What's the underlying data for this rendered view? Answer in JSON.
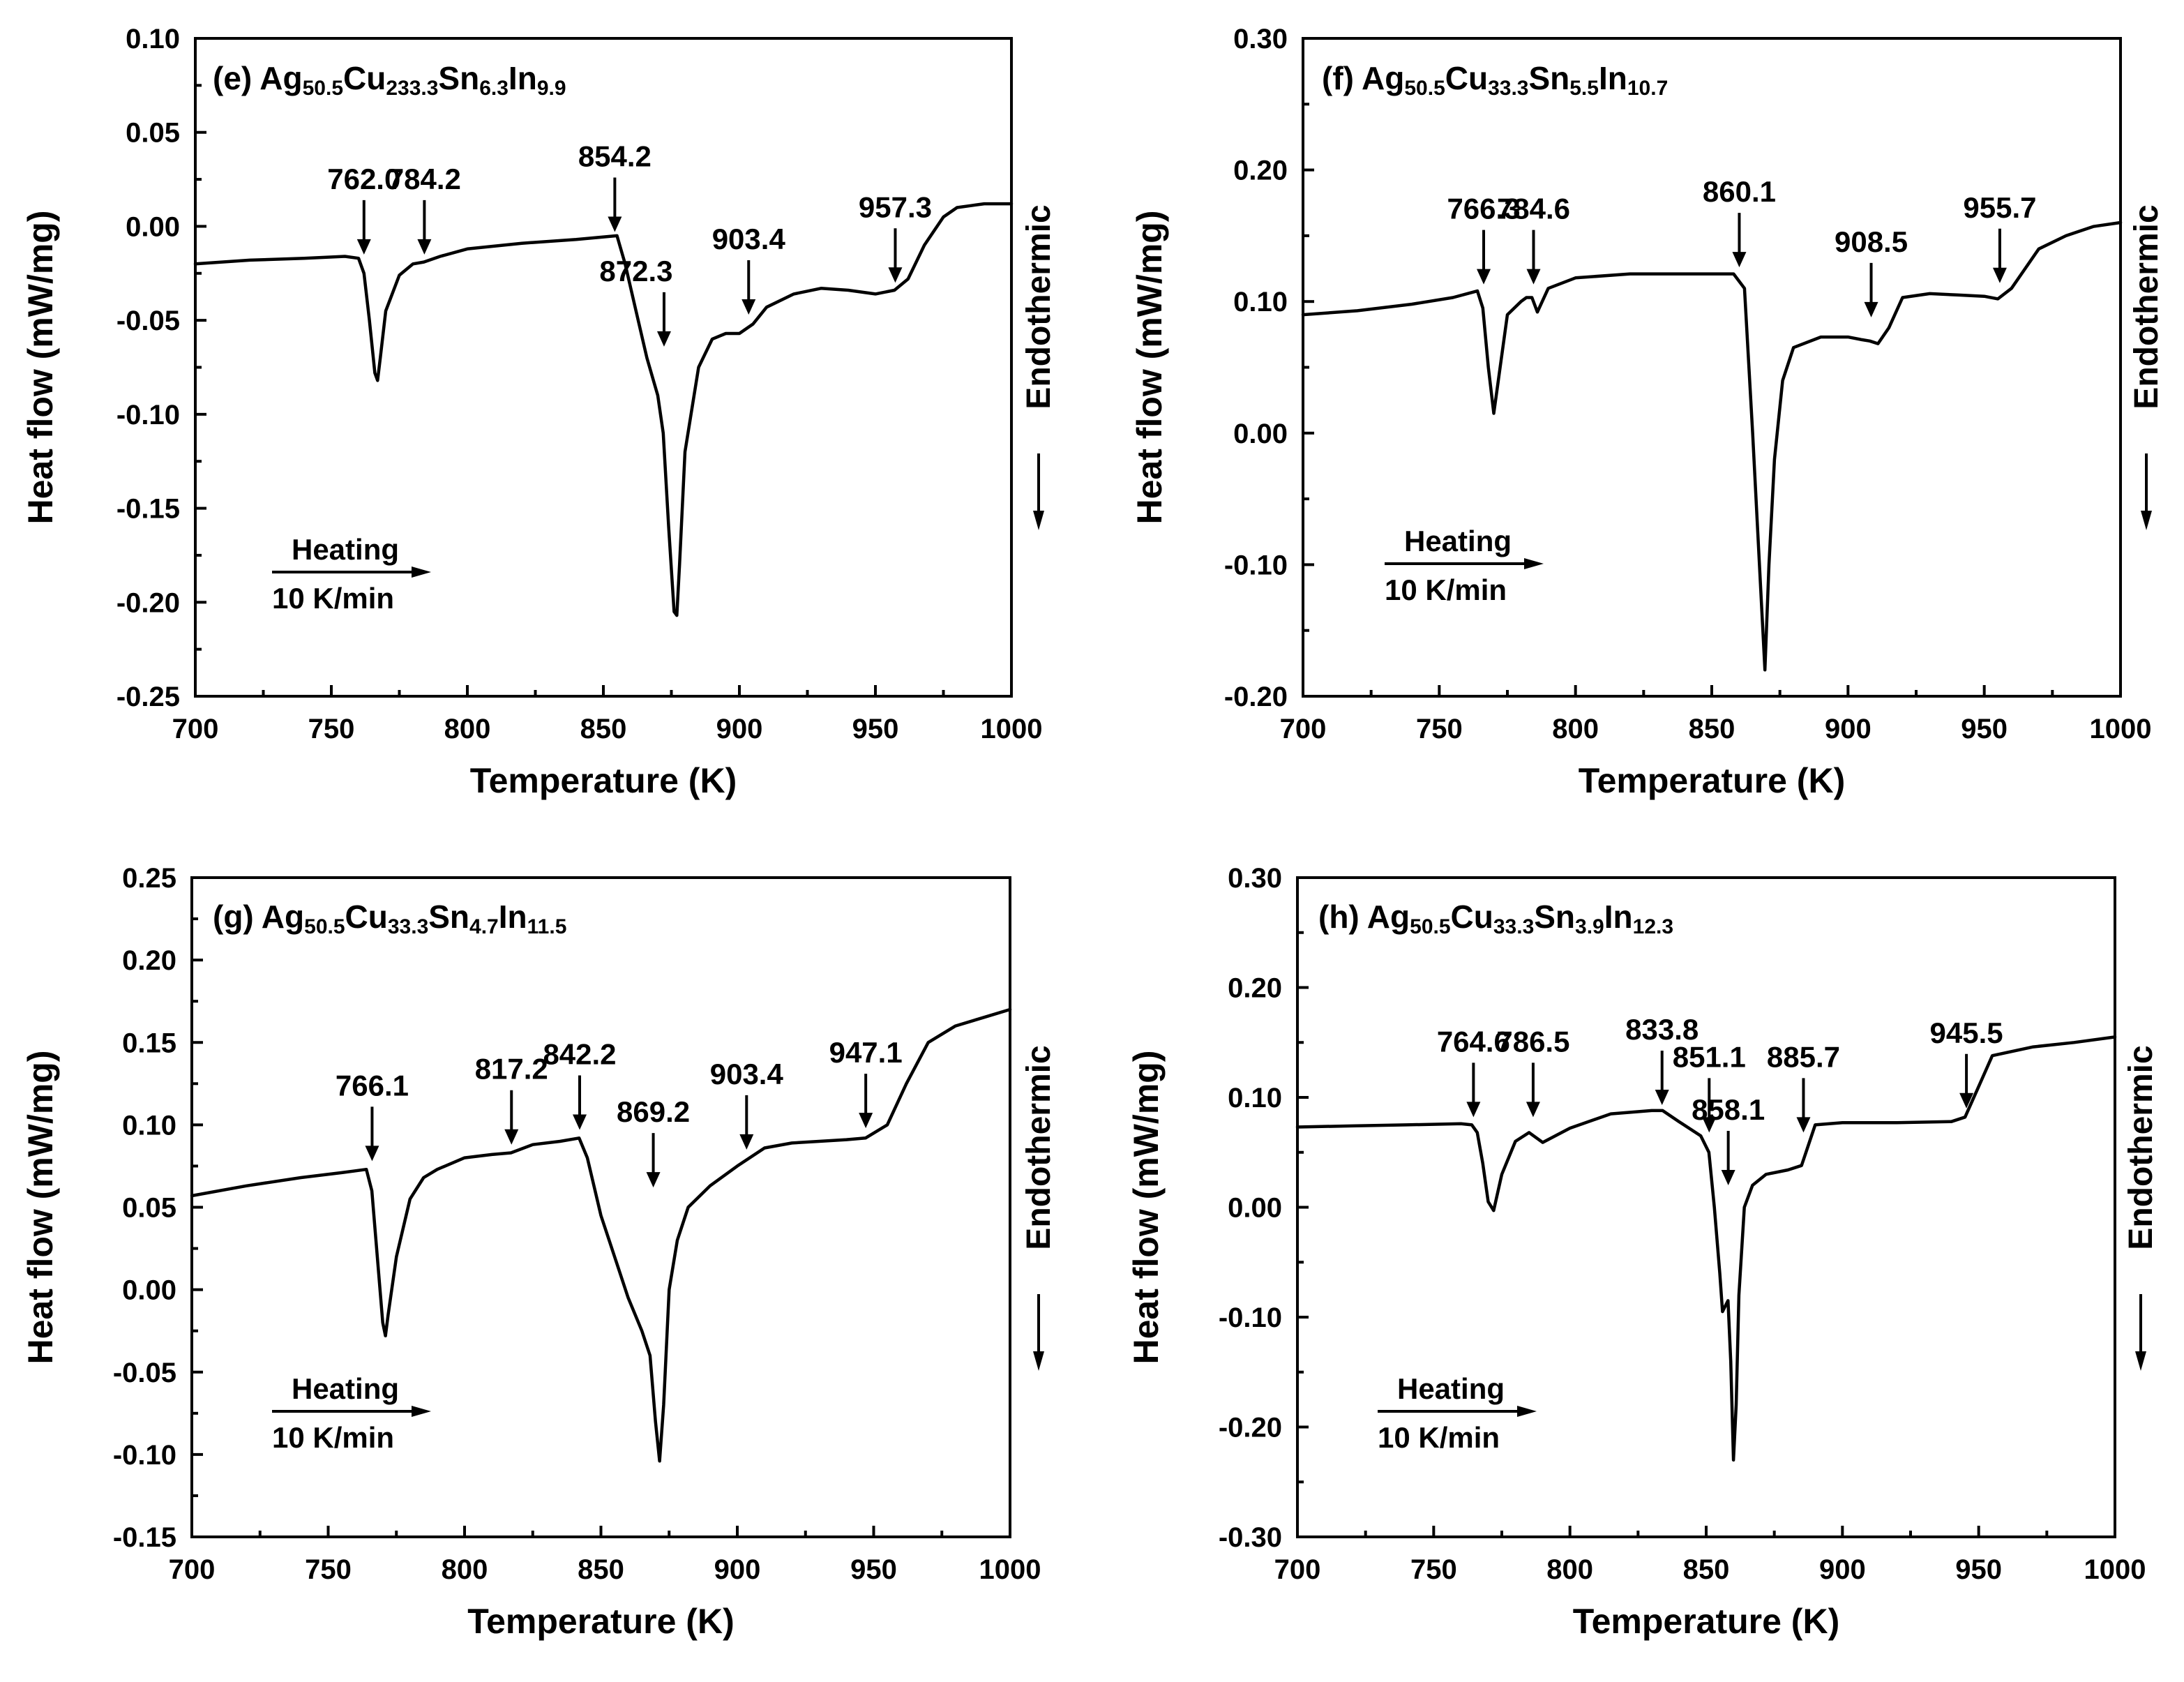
{
  "chart_data": [
    {
      "id": "e",
      "type": "line",
      "title": {
        "parts": [
          {
            "t": "(e) Ag",
            "sub": false
          },
          {
            "t": "50.5",
            "sub": true
          },
          {
            "t": "Cu",
            "sub": false
          },
          {
            "t": "233.3",
            "sub": true
          },
          {
            "t": "Sn",
            "sub": false
          },
          {
            "t": "6.3",
            "sub": true
          },
          {
            "t": "In",
            "sub": false
          },
          {
            "t": "9.9",
            "sub": true
          }
        ]
      },
      "xlabel": "Temperature (K)",
      "ylabel": "Heat flow (mW/mg)",
      "xlim": [
        700,
        1000
      ],
      "ylim": [
        -0.25,
        0.1
      ],
      "xticks": [
        "700",
        "750",
        "800",
        "850",
        "900",
        "950",
        "1000"
      ],
      "yticks": [
        "0.10",
        "0.05",
        "0.00",
        "-0.05",
        "-0.10",
        "-0.15",
        "-0.20",
        "-0.25"
      ],
      "heating_label": "Heating",
      "rate_label": "10 K/min",
      "endo_label": "Endothermic",
      "series": [
        {
          "name": "DSC",
          "x": [
            700,
            720,
            740,
            755,
            760,
            762,
            764,
            766,
            767,
            768,
            770,
            775,
            780,
            784,
            790,
            800,
            820,
            840,
            855,
            858,
            862,
            866,
            870,
            872,
            874,
            876,
            877,
            878,
            880,
            885,
            890,
            895,
            900,
            905,
            910,
            920,
            930,
            940,
            950,
            957,
            962,
            968,
            975,
            980,
            985,
            990,
            995,
            1000
          ],
          "y": [
            -0.02,
            -0.018,
            -0.017,
            -0.016,
            -0.017,
            -0.025,
            -0.05,
            -0.078,
            -0.082,
            -0.07,
            -0.045,
            -0.026,
            -0.02,
            -0.019,
            -0.016,
            -0.012,
            -0.009,
            -0.007,
            -0.005,
            -0.02,
            -0.045,
            -0.07,
            -0.09,
            -0.11,
            -0.16,
            -0.205,
            -0.207,
            -0.18,
            -0.12,
            -0.075,
            -0.06,
            -0.057,
            -0.057,
            -0.052,
            -0.043,
            -0.036,
            -0.033,
            -0.034,
            -0.036,
            -0.034,
            -0.028,
            -0.01,
            0.005,
            0.01,
            0.011,
            0.012,
            0.012,
            0.012
          ]
        }
      ],
      "annotations": [
        {
          "label": "762.0",
          "x": 762.0,
          "y": -0.015
        },
        {
          "label": "784.2",
          "x": 784.2,
          "y": -0.015
        },
        {
          "label": "854.2",
          "x": 854.2,
          "y": -0.003
        },
        {
          "label": "872.3",
          "x": 872.3,
          "y": -0.064
        },
        {
          "label": "903.4",
          "x": 903.4,
          "y": -0.047
        },
        {
          "label": "957.3",
          "x": 957.3,
          "y": -0.03
        }
      ]
    },
    {
      "id": "f",
      "type": "line",
      "title": {
        "parts": [
          {
            "t": "(f) Ag",
            "sub": false
          },
          {
            "t": "50.5",
            "sub": true
          },
          {
            "t": "Cu",
            "sub": false
          },
          {
            "t": "33.3",
            "sub": true
          },
          {
            "t": "Sn",
            "sub": false
          },
          {
            "t": "5.5",
            "sub": true
          },
          {
            "t": "In",
            "sub": false
          },
          {
            "t": "10.7",
            "sub": true
          }
        ]
      },
      "xlabel": "Temperature (K)",
      "ylabel": "Heat flow (mW/mg)",
      "xlim": [
        700,
        1000
      ],
      "ylim": [
        -0.2,
        0.3
      ],
      "xticks": [
        "700",
        "750",
        "800",
        "850",
        "900",
        "950",
        "1000"
      ],
      "yticks": [
        "0.30",
        "0.20",
        "0.10",
        "0.00",
        "-0.10",
        "-0.20"
      ],
      "heating_label": "Heating",
      "rate_label": "10 K/min",
      "endo_label": "Endothermic",
      "series": [
        {
          "name": "DSC",
          "x": [
            700,
            720,
            740,
            755,
            764,
            766,
            768,
            770,
            772,
            775,
            780,
            782,
            784,
            786,
            790,
            800,
            820,
            840,
            858,
            862,
            865,
            868,
            869.5,
            871,
            873,
            876,
            880,
            890,
            900,
            905,
            908,
            911,
            915,
            920,
            930,
            940,
            950,
            955,
            960,
            965,
            970,
            980,
            990,
            1000
          ],
          "y": [
            0.09,
            0.093,
            0.098,
            0.103,
            0.108,
            0.095,
            0.05,
            0.015,
            0.045,
            0.09,
            0.1,
            0.103,
            0.103,
            0.092,
            0.11,
            0.118,
            0.121,
            0.121,
            0.121,
            0.11,
            0.0,
            -0.12,
            -0.18,
            -0.1,
            -0.02,
            0.04,
            0.065,
            0.073,
            0.073,
            0.071,
            0.07,
            0.068,
            0.08,
            0.103,
            0.106,
            0.105,
            0.104,
            0.102,
            0.11,
            0.125,
            0.14,
            0.15,
            0.157,
            0.16
          ]
        }
      ],
      "annotations": [
        {
          "label": "766.3",
          "x": 766.3,
          "y": 0.113
        },
        {
          "label": "784.6",
          "x": 784.6,
          "y": 0.113
        },
        {
          "label": "860.1",
          "x": 860.1,
          "y": 0.126
        },
        {
          "label": "908.5",
          "x": 908.5,
          "y": 0.088
        },
        {
          "label": "955.7",
          "x": 955.7,
          "y": 0.114
        }
      ]
    },
    {
      "id": "g",
      "type": "line",
      "title": {
        "parts": [
          {
            "t": "(g) Ag",
            "sub": false
          },
          {
            "t": "50.5",
            "sub": true
          },
          {
            "t": "Cu",
            "sub": false
          },
          {
            "t": "33.3",
            "sub": true
          },
          {
            "t": "Sn",
            "sub": false
          },
          {
            "t": "4.7",
            "sub": true
          },
          {
            "t": "In",
            "sub": false
          },
          {
            "t": "11.5",
            "sub": true
          }
        ]
      },
      "xlabel": "Temperature (K)",
      "ylabel": "Heat flow (mW/mg)",
      "xlim": [
        700,
        1000
      ],
      "ylim": [
        -0.15,
        0.25
      ],
      "xticks": [
        "700",
        "750",
        "800",
        "850",
        "900",
        "950",
        "1000"
      ],
      "yticks": [
        "0.25",
        "0.20",
        "0.15",
        "0.10",
        "0.05",
        "0.00",
        "-0.05",
        "-0.10",
        "-0.15"
      ],
      "heating_label": "Heating",
      "rate_label": "10 K/min",
      "endo_label": "Endothermic",
      "series": [
        {
          "name": "DSC",
          "x": [
            700,
            720,
            740,
            755,
            764,
            766,
            768,
            770,
            771,
            772,
            775,
            780,
            785,
            790,
            800,
            810,
            817,
            825,
            835,
            842,
            845,
            850,
            855,
            860,
            865,
            868,
            870,
            871.5,
            873,
            875,
            878,
            882,
            890,
            900,
            910,
            920,
            930,
            940,
            947,
            955,
            962,
            970,
            980,
            990,
            1000
          ],
          "y": [
            0.057,
            0.063,
            0.068,
            0.071,
            0.073,
            0.06,
            0.02,
            -0.02,
            -0.028,
            -0.015,
            0.02,
            0.055,
            0.068,
            0.073,
            0.08,
            0.082,
            0.083,
            0.088,
            0.09,
            0.092,
            0.08,
            0.045,
            0.02,
            -0.005,
            -0.025,
            -0.04,
            -0.08,
            -0.104,
            -0.07,
            0.0,
            0.03,
            0.05,
            0.063,
            0.075,
            0.086,
            0.089,
            0.09,
            0.091,
            0.092,
            0.1,
            0.125,
            0.15,
            0.16,
            0.165,
            0.17
          ]
        }
      ],
      "annotations": [
        {
          "label": "766.1",
          "x": 766.1,
          "y": 0.078
        },
        {
          "label": "817.2",
          "x": 817.2,
          "y": 0.088
        },
        {
          "label": "842.2",
          "x": 842.2,
          "y": 0.097
        },
        {
          "label": "869.2",
          "x": 869.2,
          "y": 0.062
        },
        {
          "label": "903.4",
          "x": 903.4,
          "y": 0.085
        },
        {
          "label": "947.1",
          "x": 947.1,
          "y": 0.098
        }
      ]
    },
    {
      "id": "h",
      "type": "line",
      "title": {
        "parts": [
          {
            "t": "(h) Ag",
            "sub": false
          },
          {
            "t": "50.5",
            "sub": true
          },
          {
            "t": "Cu",
            "sub": false
          },
          {
            "t": "33.3",
            "sub": true
          },
          {
            "t": "Sn",
            "sub": false
          },
          {
            "t": "3.9",
            "sub": true
          },
          {
            "t": "In",
            "sub": false
          },
          {
            "t": "12.3",
            "sub": true
          }
        ]
      },
      "xlabel": "Temperature (K)",
      "ylabel": "Heat flow (mW/mg)",
      "xlim": [
        700,
        1000
      ],
      "ylim": [
        -0.3,
        0.3
      ],
      "xticks": [
        "700",
        "750",
        "800",
        "850",
        "900",
        "950",
        "1000"
      ],
      "yticks": [
        "0.30",
        "0.20",
        "0.10",
        "0.00",
        "-0.10",
        "-0.20",
        "-0.30"
      ],
      "heating_label": "Heating",
      "rate_label": "10 K/min",
      "endo_label": "Endothermic",
      "series": [
        {
          "name": "DSC",
          "x": [
            700,
            720,
            740,
            760,
            764,
            766,
            768,
            770,
            772,
            775,
            780,
            785,
            790,
            800,
            815,
            830,
            834,
            840,
            848,
            851,
            853,
            855,
            856,
            857,
            858,
            859,
            860,
            861,
            862,
            864,
            867,
            872,
            880,
            885,
            890,
            900,
            920,
            940,
            945,
            950,
            955,
            970,
            985,
            1000
          ],
          "y": [
            0.073,
            0.074,
            0.075,
            0.076,
            0.075,
            0.068,
            0.04,
            0.005,
            -0.003,
            0.03,
            0.06,
            0.068,
            0.059,
            0.072,
            0.085,
            0.088,
            0.088,
            0.078,
            0.065,
            0.05,
            0.0,
            -0.06,
            -0.095,
            -0.09,
            -0.085,
            -0.14,
            -0.23,
            -0.18,
            -0.08,
            0.0,
            0.02,
            0.03,
            0.034,
            0.038,
            0.075,
            0.077,
            0.077,
            0.078,
            0.082,
            0.11,
            0.138,
            0.146,
            0.15,
            0.155
          ]
        }
      ],
      "annotations": [
        {
          "label": "764.6",
          "x": 764.6,
          "y": 0.082
        },
        {
          "label": "786.5",
          "x": 786.5,
          "y": 0.082
        },
        {
          "label": "833.8",
          "x": 833.8,
          "y": 0.093
        },
        {
          "label": "851.1",
          "x": 851.1,
          "y": 0.068
        },
        {
          "label": "858.1",
          "x": 858.1,
          "y": 0.02
        },
        {
          "label": "885.7",
          "x": 885.7,
          "y": 0.068
        },
        {
          "label": "945.5",
          "x": 945.5,
          "y": 0.09
        }
      ]
    }
  ]
}
